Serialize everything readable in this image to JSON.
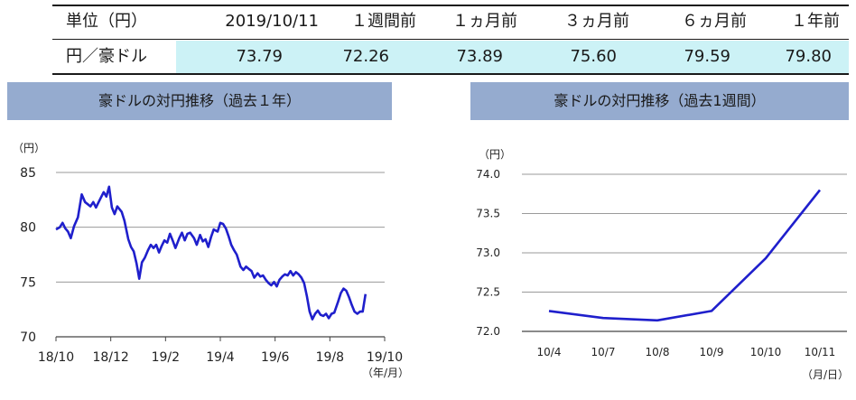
{
  "table": {
    "header": [
      "単位（円）",
      "2019/10/11",
      "１週間前",
      "１ヵ月前",
      "３ヵ月前",
      "６ヵ月前",
      "１年前"
    ],
    "row_label": "円／豪ドル",
    "values": [
      "73.79",
      "72.26",
      "73.89",
      "75.60",
      "79.59",
      "79.80"
    ],
    "highlight_color": "#ccf2f6"
  },
  "chart_data": [
    {
      "type": "line",
      "title": "豪ドルの対円推移（過去１年）",
      "yunit": "（円）",
      "xunit": "（年/月）",
      "ylim": [
        70,
        85
      ],
      "yticks": [
        "70",
        "75",
        "80",
        "85"
      ],
      "xticks": [
        "18/10",
        "18/12",
        "19/2",
        "19/4",
        "19/6",
        "19/8",
        "19/10"
      ],
      "grid": true,
      "color": "#1f1fcc",
      "series": [
        {
          "values": [
            [
              0.0,
              79.8
            ],
            [
              0.07,
              80.0
            ],
            [
              0.12,
              80.4
            ],
            [
              0.17,
              79.9
            ],
            [
              0.22,
              79.6
            ],
            [
              0.27,
              79.0
            ],
            [
              0.33,
              80.1
            ],
            [
              0.4,
              80.9
            ],
            [
              0.47,
              83.0
            ],
            [
              0.53,
              82.3
            ],
            [
              0.58,
              82.1
            ],
            [
              0.63,
              81.9
            ],
            [
              0.68,
              82.3
            ],
            [
              0.73,
              81.8
            ],
            [
              0.8,
              82.5
            ],
            [
              0.87,
              83.2
            ],
            [
              0.92,
              82.8
            ],
            [
              0.97,
              83.7
            ],
            [
              1.02,
              81.8
            ],
            [
              1.07,
              81.2
            ],
            [
              1.12,
              81.9
            ],
            [
              1.2,
              81.4
            ],
            [
              1.25,
              80.6
            ],
            [
              1.32,
              78.9
            ],
            [
              1.37,
              78.2
            ],
            [
              1.42,
              77.8
            ],
            [
              1.47,
              76.7
            ],
            [
              1.52,
              75.3
            ],
            [
              1.57,
              76.8
            ],
            [
              1.62,
              77.2
            ],
            [
              1.68,
              77.9
            ],
            [
              1.73,
              78.4
            ],
            [
              1.78,
              78.1
            ],
            [
              1.83,
              78.4
            ],
            [
              1.88,
              77.7
            ],
            [
              1.93,
              78.3
            ],
            [
              1.98,
              78.8
            ],
            [
              2.03,
              78.6
            ],
            [
              2.08,
              79.4
            ],
            [
              2.13,
              78.8
            ],
            [
              2.18,
              78.1
            ],
            [
              2.25,
              79.0
            ],
            [
              2.3,
              79.5
            ],
            [
              2.35,
              78.8
            ],
            [
              2.4,
              79.4
            ],
            [
              2.45,
              79.5
            ],
            [
              2.52,
              79.0
            ],
            [
              2.57,
              78.4
            ],
            [
              2.63,
              79.3
            ],
            [
              2.68,
              78.7
            ],
            [
              2.73,
              78.9
            ],
            [
              2.78,
              78.2
            ],
            [
              2.83,
              79.1
            ],
            [
              2.88,
              79.8
            ],
            [
              2.95,
              79.6
            ],
            [
              3.0,
              80.4
            ],
            [
              3.05,
              80.3
            ],
            [
              3.1,
              79.9
            ],
            [
              3.15,
              79.2
            ],
            [
              3.2,
              78.4
            ],
            [
              3.25,
              77.9
            ],
            [
              3.3,
              77.5
            ],
            [
              3.37,
              76.4
            ],
            [
              3.42,
              76.1
            ],
            [
              3.47,
              76.4
            ],
            [
              3.52,
              76.2
            ],
            [
              3.57,
              76.0
            ],
            [
              3.62,
              75.4
            ],
            [
              3.68,
              75.8
            ],
            [
              3.73,
              75.5
            ],
            [
              3.78,
              75.6
            ],
            [
              3.83,
              75.2
            ],
            [
              3.88,
              74.9
            ],
            [
              3.93,
              74.7
            ],
            [
              3.98,
              75.0
            ],
            [
              4.03,
              74.6
            ],
            [
              4.08,
              75.2
            ],
            [
              4.13,
              75.5
            ],
            [
              4.18,
              75.7
            ],
            [
              4.23,
              75.6
            ],
            [
              4.28,
              76.0
            ],
            [
              4.33,
              75.6
            ],
            [
              4.38,
              75.9
            ],
            [
              4.43,
              75.7
            ],
            [
              4.48,
              75.4
            ],
            [
              4.53,
              74.9
            ],
            [
              4.58,
              73.7
            ],
            [
              4.63,
              72.3
            ],
            [
              4.68,
              71.6
            ],
            [
              4.73,
              72.1
            ],
            [
              4.78,
              72.4
            ],
            [
              4.83,
              72.0
            ],
            [
              4.88,
              71.9
            ],
            [
              4.93,
              72.1
            ],
            [
              4.98,
              71.7
            ],
            [
              5.03,
              72.1
            ],
            [
              5.08,
              72.2
            ],
            [
              5.15,
              73.2
            ],
            [
              5.2,
              74.0
            ],
            [
              5.25,
              74.4
            ],
            [
              5.3,
              74.2
            ],
            [
              5.35,
              73.6
            ],
            [
              5.4,
              72.9
            ],
            [
              5.45,
              72.3
            ],
            [
              5.5,
              72.1
            ],
            [
              5.55,
              72.3
            ],
            [
              5.6,
              72.3
            ],
            [
              5.65,
              73.9
            ]
          ]
        }
      ]
    },
    {
      "type": "line",
      "title": "豪ドルの対円推移（過去1週間）",
      "yunit": "（円）",
      "xunit": "（月/日）",
      "ylim": [
        72.0,
        74.0
      ],
      "yticks": [
        "72.0",
        "72.5",
        "73.0",
        "73.5",
        "74.0"
      ],
      "categories": [
        "10/4",
        "10/7",
        "10/8",
        "10/9",
        "10/10",
        "10/11"
      ],
      "grid": true,
      "color": "#1f1fcc",
      "series": [
        {
          "values": [
            72.26,
            72.17,
            72.14,
            72.26,
            72.93,
            73.8
          ]
        }
      ]
    }
  ]
}
